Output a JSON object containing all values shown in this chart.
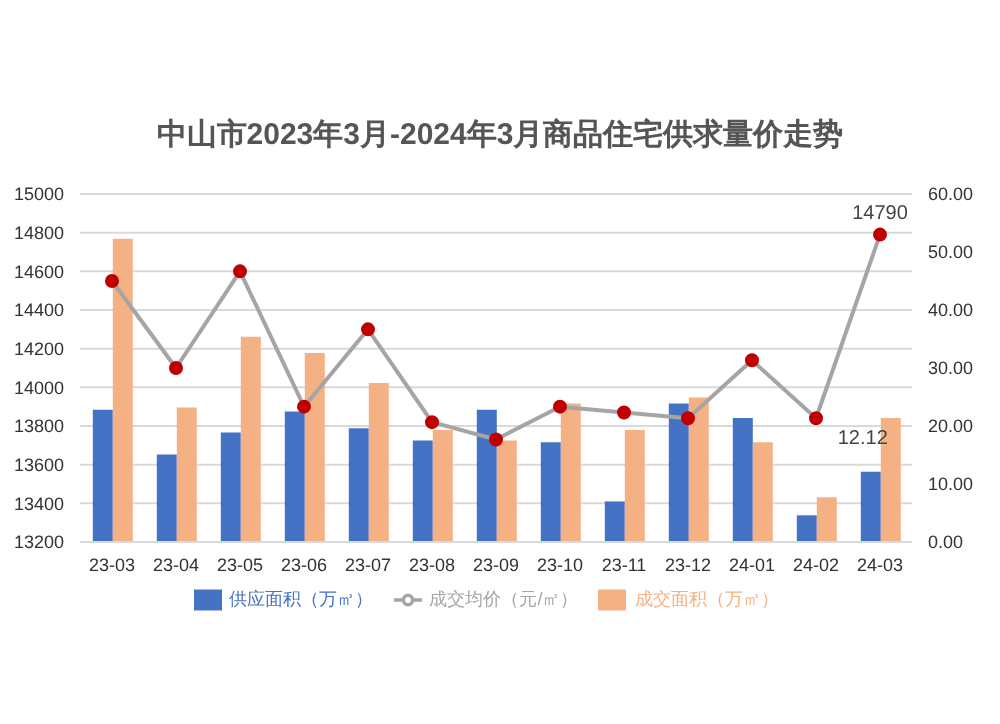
{
  "chart_data": {
    "type": "bar",
    "title": "中山市2023年3月-2024年3月商品住宅供求量价走势",
    "categories": [
      "23-03",
      "23-04",
      "23-05",
      "23-06",
      "23-07",
      "23-08",
      "23-09",
      "23-10",
      "23-11",
      "23-12",
      "24-01",
      "24-02",
      "24-03"
    ],
    "series": [
      {
        "name": "供应面积（万㎡）",
        "axis": "y2",
        "color": "#4472c4",
        "values": [
          22.8,
          15.1,
          18.9,
          22.5,
          19.6,
          17.5,
          22.8,
          17.2,
          7.0,
          23.9,
          21.4,
          4.6,
          12.12
        ],
        "value_labels": [
          null,
          null,
          null,
          null,
          null,
          null,
          null,
          null,
          null,
          null,
          null,
          null,
          "12.12"
        ]
      },
      {
        "name": "成交面积（万㎡）",
        "axis": "y2",
        "color": "#f4b183",
        "values": [
          52.3,
          23.2,
          35.4,
          32.6,
          27.4,
          19.3,
          17.5,
          23.9,
          19.3,
          24.9,
          17.2,
          7.7,
          21.4
        ]
      },
      {
        "name": "成交均价（元/㎡）",
        "type": "line",
        "color": "#a5a5a5",
        "values": [
          14550,
          14100,
          14600,
          13900,
          14300,
          13820,
          13730,
          13900,
          13870,
          13840,
          14140,
          13840,
          14790
        ],
        "value_labels": [
          null,
          null,
          null,
          null,
          null,
          null,
          null,
          null,
          null,
          null,
          null,
          null,
          "14790"
        ]
      }
    ],
    "ylim": [
      13200,
      15000
    ],
    "yticks": [
      13200,
      13400,
      13600,
      13800,
      14000,
      14200,
      14400,
      14600,
      14800,
      15000
    ],
    "y2lim": [
      0,
      60
    ],
    "y2ticks": [
      {
        "value": 0,
        "label": "0.00"
      },
      {
        "value": 10,
        "label": "10.00"
      },
      {
        "value": 20,
        "label": "20.00"
      },
      {
        "value": 30,
        "label": "30.00"
      },
      {
        "value": 40,
        "label": "40.00"
      },
      {
        "value": 50,
        "label": "50.00"
      },
      {
        "value": 60,
        "label": "60.00"
      }
    ],
    "grid": "y",
    "legend": "bottom",
    "marker": "circle",
    "line_style": "solid"
  }
}
